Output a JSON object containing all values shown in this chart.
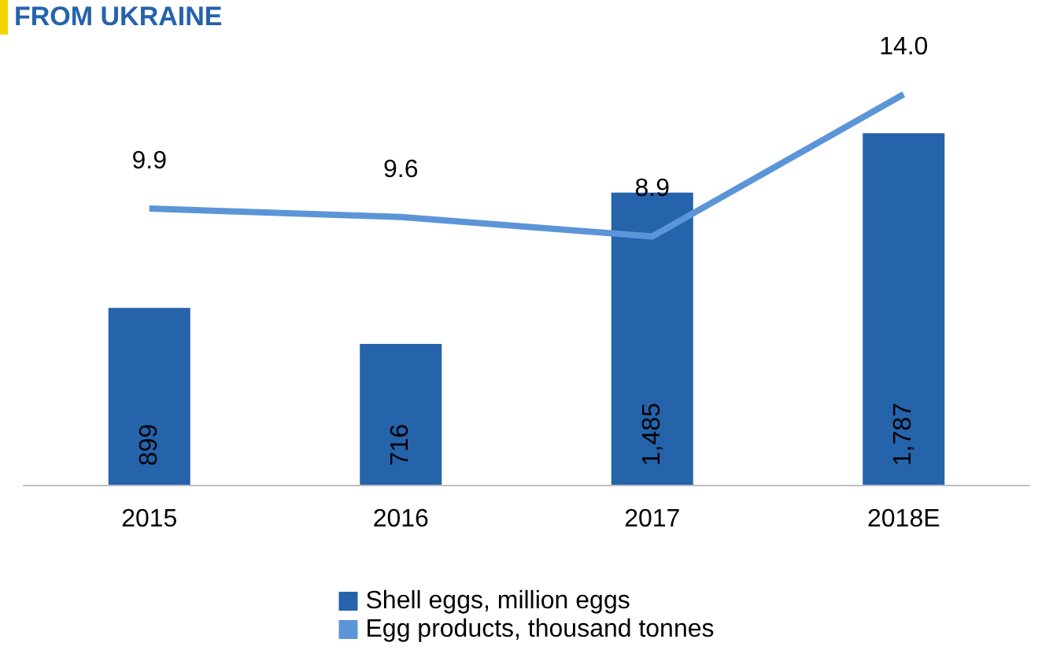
{
  "chart_data": {
    "type": "bar",
    "title": "FROM UKRAINE",
    "categories": [
      "2015",
      "2016",
      "2017",
      "2018E"
    ],
    "series": [
      {
        "name": "Shell eggs, million eggs",
        "color": "#2563ab",
        "values": [
          899,
          716,
          1485,
          1787
        ],
        "value_labels": [
          "899",
          "716",
          "1,485",
          "1,787"
        ]
      },
      {
        "name": "Egg products, thousand tonnes",
        "type": "line",
        "axis": "y2",
        "color": "#5b95d8",
        "values": [
          9.9,
          9.6,
          8.9,
          14.0
        ],
        "value_labels": [
          "9.9",
          "9.6",
          "8.9",
          "14.0"
        ]
      }
    ],
    "data_labels": true,
    "tick_labels": "x",
    "grid": false,
    "legend": "bottom",
    "marker": "none"
  }
}
